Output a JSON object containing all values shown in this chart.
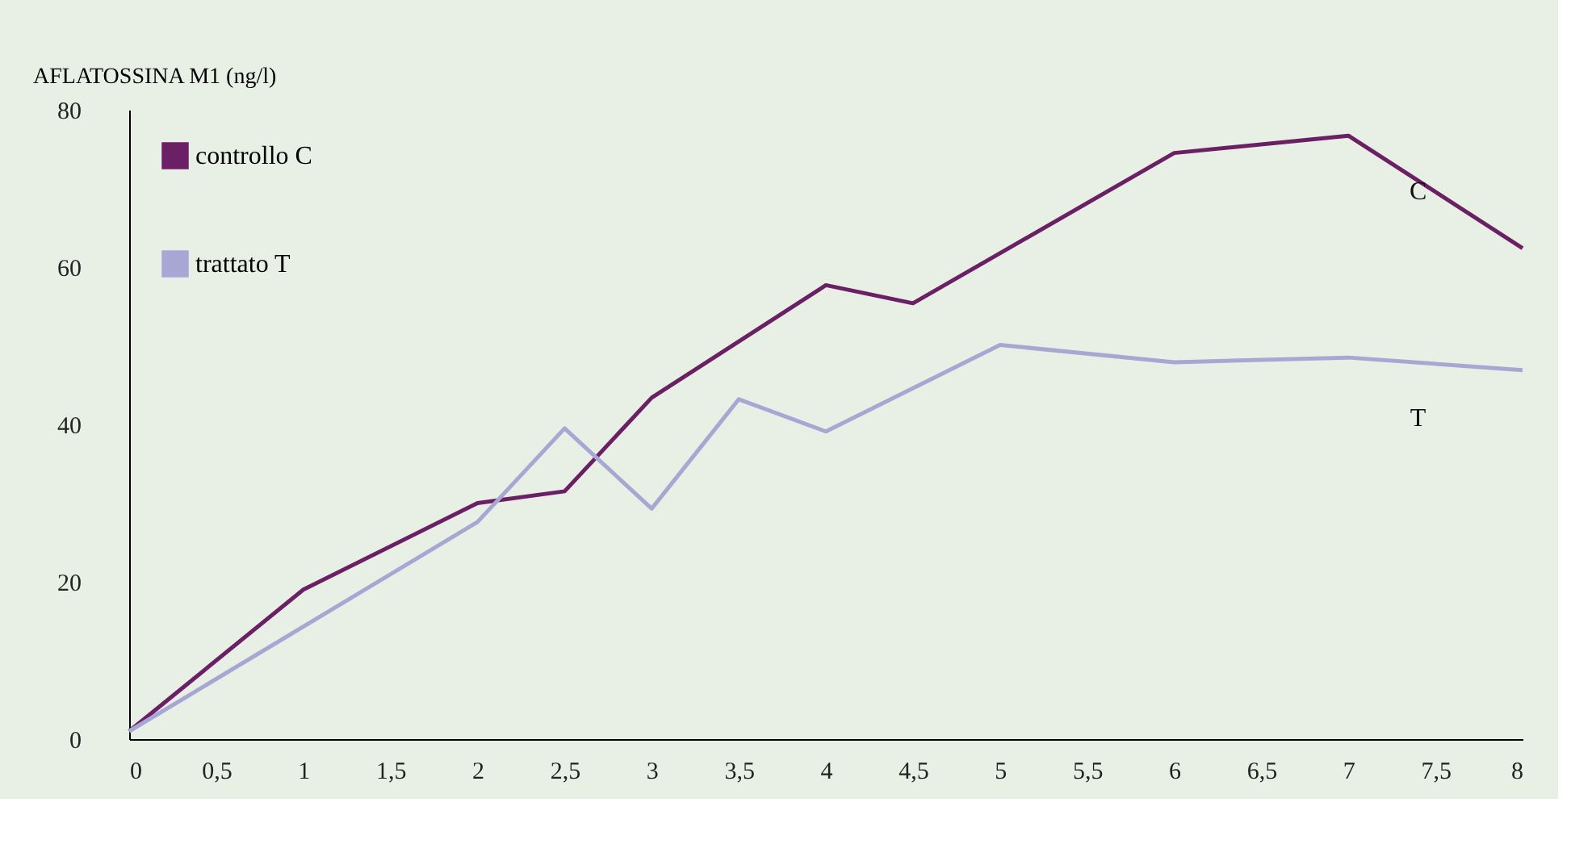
{
  "chart_data": {
    "type": "line",
    "ylabel": "AFLATOSSINA M1 (ng/l)",
    "x": [
      0,
      1,
      2,
      2.5,
      3,
      4,
      4.5,
      6,
      7,
      8
    ],
    "series": [
      {
        "name": "controllo C",
        "color": "#6b1f64",
        "values": [
          1,
          19,
          30,
          31.5,
          43.4,
          57.7,
          55.4,
          74.5,
          76.7,
          62.4
        ]
      },
      {
        "name": "trattato T",
        "color": "#a8a6d2",
        "x": [
          0,
          2,
          2.5,
          3,
          3.5,
          4,
          5,
          6,
          7,
          8
        ],
        "values": [
          1,
          27.6,
          39.5,
          29.3,
          43.2,
          39.1,
          50.1,
          47.9,
          48.5,
          46.9
        ]
      }
    ],
    "xlim": [
      0,
      8
    ],
    "ylim": [
      0,
      80
    ],
    "xticks": [
      0,
      {
        "value": 0.5,
        "label": "0,5"
      },
      1,
      {
        "value": 1.5,
        "label": "1,5"
      },
      2,
      {
        "value": 2.5,
        "label": "2,5"
      },
      3,
      {
        "value": 3.5,
        "label": "3,5"
      },
      4,
      {
        "value": 4.5,
        "label": "4,5"
      },
      5,
      {
        "value": 5.5,
        "label": "5,5"
      },
      6,
      {
        "value": 6.5,
        "label": "6,5"
      },
      7,
      {
        "value": 7.5,
        "label": "7,5"
      },
      8
    ],
    "yticks": [
      0,
      20,
      40,
      60,
      80
    ],
    "annotations": [
      "C",
      "T"
    ],
    "grid": false,
    "legend": "top left",
    "marker": "none",
    "line_style": "solid"
  }
}
